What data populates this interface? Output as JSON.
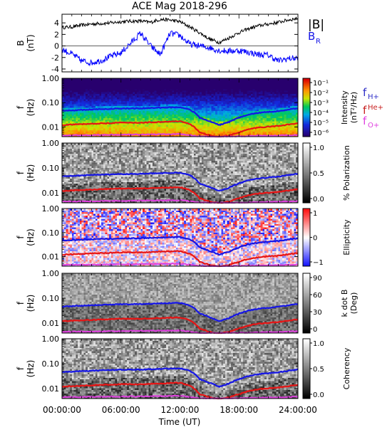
{
  "chart_data": {
    "type": "multi-panel spectrogram",
    "title": "ACE Mag 2018-296",
    "xlabel": "Time (UT)",
    "xlim": [
      "00:00:00",
      "24:00:00"
    ],
    "xticks": [
      "00:00:00",
      "06:00:00",
      "12:00:00",
      "18:00:00",
      "24:00:00"
    ],
    "panels": [
      {
        "id": "field",
        "type": "line",
        "ylabel": "B",
        "yunit": "(nT)",
        "ylim": [
          -4.5,
          5.5
        ],
        "yticks": [
          "4",
          "2",
          "0",
          "-2",
          "-4"
        ],
        "yvals": [
          4,
          2,
          0,
          -2,
          -4
        ],
        "legend": [
          "|B|",
          "B",
          "R"
        ],
        "series": [
          {
            "name": "|B|",
            "color": "#000000",
            "times": [
              0,
              1,
              2,
              3,
              4,
              5,
              6,
              7,
              8,
              9,
              10,
              11,
              12,
              13,
              14,
              15,
              16,
              17,
              18,
              19,
              20,
              21,
              22,
              23,
              24
            ],
            "values": [
              3.2,
              3.3,
              3.6,
              3.8,
              3.9,
              4.0,
              4.2,
              4.3,
              4.3,
              4.1,
              4.6,
              4.5,
              4.2,
              3.3,
              2.3,
              1.2,
              0.6,
              1.4,
              2.3,
              3.0,
              3.5,
              3.8,
              4.1,
              4.5,
              4.8
            ]
          },
          {
            "name": "B_R",
            "color": "#0000ff",
            "times": [
              0,
              1,
              2,
              3,
              4,
              5,
              6,
              7,
              8,
              9,
              10,
              11,
              12,
              13,
              14,
              15,
              16,
              17,
              18,
              19,
              20,
              21,
              22,
              23,
              24
            ],
            "values": [
              -0.6,
              -1.4,
              -2.6,
              -2.9,
              -2.5,
              -1.8,
              -1.2,
              0.5,
              2.2,
              0.0,
              -1.5,
              2.2,
              1.8,
              0.3,
              0.0,
              -0.3,
              -0.8,
              -0.9,
              -0.8,
              -1.1,
              -1.5,
              -1.6,
              -2.6,
              -2.2,
              -2.1
            ]
          }
        ]
      },
      {
        "id": "intensity",
        "type": "heatmap",
        "ylabel": "f",
        "yunit": "(Hz)",
        "ylim": [
          0.004,
          1.0
        ],
        "yscale": "log",
        "yticks": [
          "1.00",
          "0.10",
          "0.01"
        ],
        "yvals": [
          1.0,
          0.1,
          0.01
        ],
        "colorbar": {
          "label": "Intensity",
          "unit": "(nT²/Hz)",
          "colorscale": "rainbow",
          "ticks": [
            "10⁻¹",
            "10⁻²",
            "10⁻³",
            "10⁻⁴",
            "10⁻⁵",
            "10⁻⁶"
          ]
        },
        "legend": [
          {
            "label": "f",
            "sub": "H+",
            "color": "#3030c8",
            "script": "sub"
          },
          {
            "label": "f",
            "sub": "He+",
            "color": "#c82020",
            "script": "sup"
          },
          {
            "label": "f",
            "sub": "O+",
            "color": "#e040e0",
            "script": "sub"
          }
        ]
      },
      {
        "id": "polarization",
        "type": "heatmap",
        "ylabel": "f",
        "yunit": "(Hz)",
        "ylim": [
          0.004,
          1.0
        ],
        "yscale": "log",
        "yticks": [
          "1.00",
          "0.10",
          "0.01"
        ],
        "yvals": [
          1.0,
          0.1,
          0.01
        ],
        "colorbar": {
          "label": "% Polarization",
          "unit": "",
          "colorscale": "gray",
          "ticks": [
            "1.0",
            "0.5",
            "0.0"
          ]
        }
      },
      {
        "id": "ellipticity",
        "type": "heatmap",
        "ylabel": "f",
        "yunit": "(Hz)",
        "ylim": [
          0.004,
          1.0
        ],
        "yscale": "log",
        "yticks": [
          "1.00",
          "0.10",
          "0.01"
        ],
        "yvals": [
          1.0,
          0.1,
          0.01
        ],
        "colorbar": {
          "label": "Ellipticity",
          "unit": "",
          "colorscale": "bwr",
          "ticks": [
            "1",
            "0",
            "−1"
          ]
        }
      },
      {
        "id": "wave-normal",
        "type": "heatmap",
        "ylabel": "f",
        "yunit": "(Hz)",
        "ylim": [
          0.004,
          1.0
        ],
        "yscale": "log",
        "yticks": [
          "1.00",
          "0.10",
          "0.01"
        ],
        "yvals": [
          1.0,
          0.1,
          0.01
        ],
        "colorbar": {
          "label": "k dot B",
          "unit": "(Deg)",
          "colorscale": "gray",
          "ticks": [
            "90",
            "60",
            "30",
            "0"
          ]
        }
      },
      {
        "id": "coherency",
        "type": "heatmap",
        "ylabel": "f",
        "yunit": "(Hz)",
        "ylim": [
          0.004,
          1.0
        ],
        "yscale": "log",
        "yticks": [
          "1.00",
          "0.10",
          "0.01"
        ],
        "yvals": [
          1.0,
          0.1,
          0.01
        ],
        "colorbar": {
          "label": "Coherency",
          "unit": "",
          "colorscale": "gray",
          "ticks": [
            "1.0",
            "0.5",
            "0.0"
          ]
        }
      }
    ],
    "gyrofrequency_lines": {
      "times": [
        0,
        2,
        4,
        6,
        8,
        10,
        12,
        13,
        14,
        15,
        16,
        17,
        18,
        19,
        20,
        22,
        24
      ],
      "fH": [
        0.046,
        0.05,
        0.054,
        0.057,
        0.058,
        0.062,
        0.065,
        0.052,
        0.024,
        0.017,
        0.012,
        0.016,
        0.024,
        0.032,
        0.038,
        0.045,
        0.058
      ],
      "fHe": [
        0.012,
        0.013,
        0.014,
        0.015,
        0.015,
        0.016,
        0.017,
        0.013,
        0.006,
        0.0045,
        0.0038,
        0.0045,
        0.006,
        0.008,
        0.0095,
        0.011,
        0.014
      ],
      "fO": [
        0.0045,
        0.0046,
        0.0047,
        0.0048,
        0.0049,
        0.005,
        0.0051,
        0.0046,
        0.0041,
        0.004,
        0.004,
        0.004,
        0.0041,
        0.0042,
        0.0043,
        0.0044,
        0.0047
      ]
    }
  }
}
